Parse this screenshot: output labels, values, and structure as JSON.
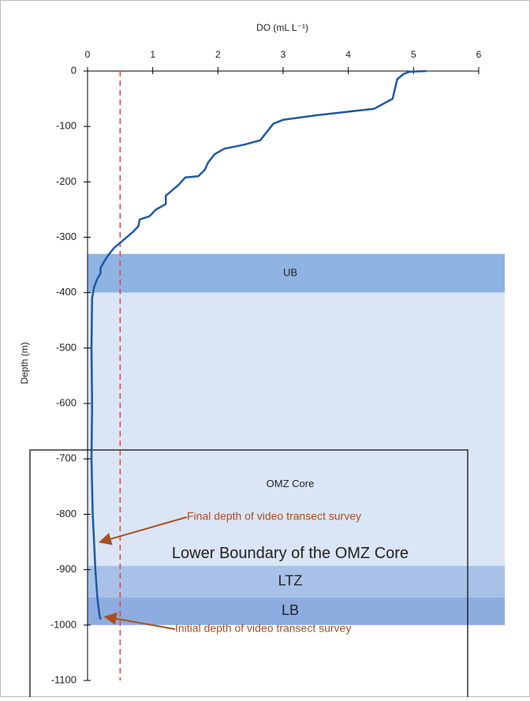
{
  "chart_data": {
    "type": "line",
    "x_label": "DO (mL L⁻¹)",
    "y_label": "Depth (m)",
    "xlim": [
      0,
      6.4
    ],
    "xticks": [
      0,
      1,
      2,
      3,
      4,
      5,
      6
    ],
    "ylim": [
      -1100,
      0
    ],
    "yticks": [
      0,
      -100,
      -200,
      -300,
      -400,
      -500,
      -600,
      -700,
      -800,
      -900,
      -1000,
      -1100
    ],
    "threshold": 0.5,
    "threshold_color": "#e8403a",
    "bands": [
      {
        "label": "UB",
        "from": -330,
        "to": -400,
        "color": "#8fb3e2"
      },
      {
        "label": "OMZ Core",
        "from": -400,
        "to": -893,
        "color": "#dae5f5"
      },
      {
        "label": "LTZ",
        "from": -893,
        "to": -950,
        "color": "#a7c1e8"
      },
      {
        "label": "LB",
        "from": -950,
        "to": -1000,
        "color": "#8dade0"
      }
    ],
    "band_annotation": "Lower Boundary of the OMZ Core",
    "annotations": [
      {
        "text": "Final depth of video transect survey",
        "x": 0.12,
        "y": -850
      },
      {
        "text": "Initial depth of video transect survey",
        "x": 0.2,
        "y": -985
      }
    ],
    "annotation_color": "#a8511e",
    "series": [
      {
        "color": "#1f5aa0",
        "x": [
          5.2,
          4.95,
          4.85,
          4.75,
          4.72,
          4.68,
          4.6,
          4.4,
          3.5,
          3.0,
          2.85,
          2.75,
          2.65,
          2.4,
          2.1,
          1.95,
          1.85,
          1.8,
          1.7,
          1.5,
          1.4,
          1.3,
          1.2,
          1.2,
          1.05,
          0.95,
          0.8,
          0.78,
          0.7,
          0.55,
          0.4,
          0.3,
          0.25,
          0.2,
          0.2,
          0.15,
          0.1,
          0.07,
          0.06,
          0.07,
          0.06,
          0.08,
          0.1,
          0.12,
          0.15,
          0.18,
          0.2
        ],
        "values": [
          0,
          -1,
          -5,
          -15,
          -30,
          -50,
          -55,
          -68,
          -80,
          -88,
          -95,
          -110,
          -125,
          -133,
          -140,
          -150,
          -165,
          -178,
          -190,
          -192,
          -205,
          -215,
          -225,
          -240,
          -250,
          -262,
          -268,
          -280,
          -290,
          -305,
          -320,
          -335,
          -345,
          -355,
          -365,
          -375,
          -390,
          -410,
          -500,
          -600,
          -700,
          -800,
          -850,
          -900,
          -950,
          -980,
          -990
        ]
      }
    ]
  }
}
